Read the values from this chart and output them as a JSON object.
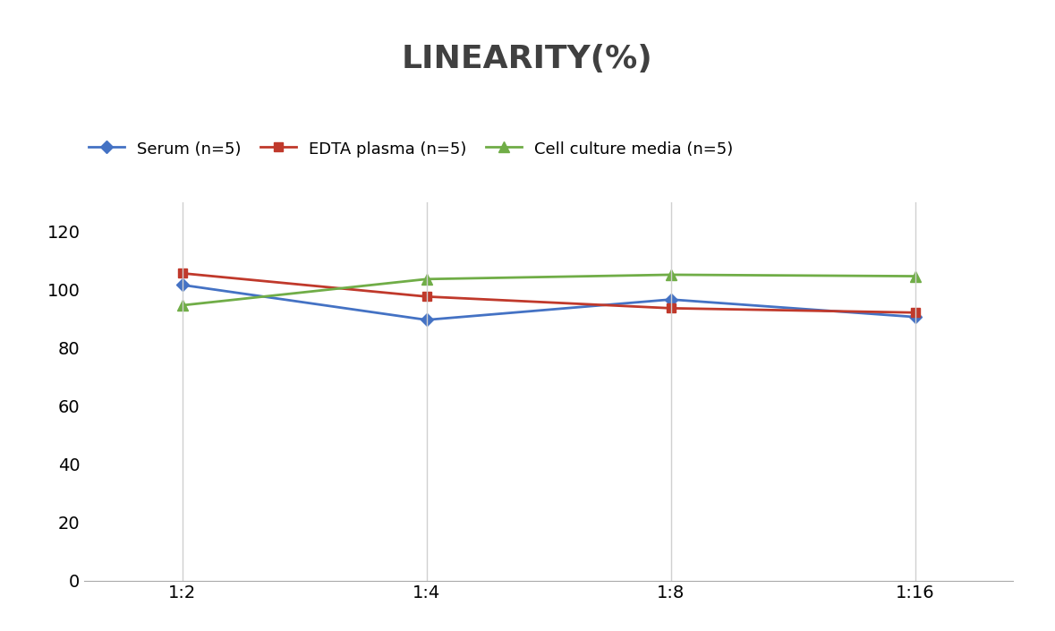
{
  "title": "LINEARITY(%)",
  "x_labels": [
    "1:2",
    "1:4",
    "1:8",
    "1:16"
  ],
  "x_values": [
    0,
    1,
    2,
    3
  ],
  "series": [
    {
      "label": "Serum (n=5)",
      "values": [
        101.5,
        89.5,
        96.5,
        90.5
      ],
      "color": "#4472C4",
      "marker": "D",
      "markersize": 7
    },
    {
      "label": "EDTA plasma (n=5)",
      "values": [
        105.5,
        97.5,
        93.5,
        92.0
      ],
      "color": "#C0392B",
      "marker": "s",
      "markersize": 7
    },
    {
      "label": "Cell culture media (n=5)",
      "values": [
        94.5,
        103.5,
        105.0,
        104.5
      ],
      "color": "#70AD47",
      "marker": "^",
      "markersize": 8
    }
  ],
  "ylim": [
    0,
    130
  ],
  "yticks": [
    0,
    20,
    40,
    60,
    80,
    100,
    120
  ],
  "title_fontsize": 26,
  "legend_fontsize": 13,
  "tick_fontsize": 14,
  "background_color": "#ffffff",
  "grid_color": "#d0d0d0",
  "linewidth": 2.0
}
